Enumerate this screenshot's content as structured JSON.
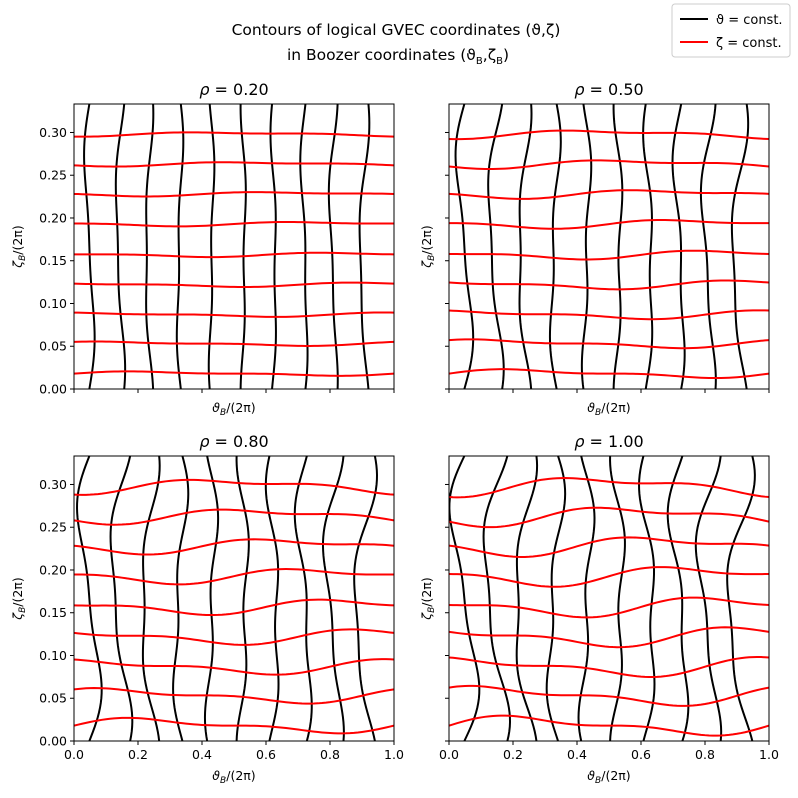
{
  "figure": {
    "title_line1": "Contours of logical GVEC coordinates (ϑ,ζ)",
    "title_line2": "in Boozer coordinates (ϑ",
    "title_line2_sub1": "B",
    "title_line2_mid": ",ζ",
    "title_line2_sub2": "B",
    "title_line2_end": ")"
  },
  "legend": {
    "position": "top-right",
    "entries": [
      {
        "symbol": "ϑ",
        "text": " = const.",
        "color": "#000000"
      },
      {
        "symbol": "ζ",
        "text": " = const.",
        "color": "#ff0000"
      }
    ]
  },
  "axes_labels": {
    "x_main": "ϑ",
    "x_sub": "B",
    "x_tail": "/(2π)",
    "y_main": "ζ",
    "y_sub": "B",
    "y_tail": "/(2π)"
  },
  "colors": {
    "theta_const": "#000000",
    "zeta_const": "#ff0000"
  },
  "chart_data": [
    {
      "type": "line",
      "panel": "top-left",
      "title": "ρ = 0.20",
      "rho_symbol": "ρ",
      "rho_value": "0.20",
      "xlim": [
        0,
        1.0
      ],
      "ylim": [
        0,
        0.3333
      ],
      "x_ticks": [
        0.0,
        0.2,
        0.4,
        0.6,
        0.8,
        1.0
      ],
      "x_tick_labels_shown": false,
      "y_ticks": [
        "0.00",
        "0.05",
        "0.10",
        "0.15",
        "0.20",
        "0.25",
        "0.30"
      ],
      "y_tick_labels_shown": true,
      "theta_const_x": [
        0.048,
        0.143,
        0.233,
        0.33,
        0.43,
        0.53,
        0.625,
        0.72,
        0.81,
        0.905
      ],
      "theta_const_amp": 0.012,
      "zeta_const_y": [
        0.018,
        0.053,
        0.087,
        0.122,
        0.157,
        0.193,
        0.228,
        0.263,
        0.298
      ],
      "zeta_const_amp": 0.002
    },
    {
      "type": "line",
      "panel": "top-right",
      "title": "ρ = 0.50",
      "rho_symbol": "ρ",
      "rho_value": "0.50",
      "xlim": [
        0,
        1.0
      ],
      "ylim": [
        0,
        0.3333
      ],
      "x_ticks": [
        0.0,
        0.2,
        0.4,
        0.6,
        0.8,
        1.0
      ],
      "x_tick_labels_shown": false,
      "y_ticks": [
        "0.00",
        "0.05",
        "0.10",
        "0.15",
        "0.20",
        "0.25",
        "0.30"
      ],
      "y_tick_labels_shown": false,
      "theta_const_x": [
        0.048,
        0.143,
        0.233,
        0.33,
        0.43,
        0.53,
        0.625,
        0.72,
        0.81,
        0.905
      ],
      "theta_const_amp": 0.02,
      "zeta_const_y": [
        0.018,
        0.053,
        0.087,
        0.122,
        0.157,
        0.193,
        0.228,
        0.263,
        0.298
      ],
      "zeta_const_amp": 0.004
    },
    {
      "type": "line",
      "panel": "bottom-left",
      "title": "ρ = 0.80",
      "rho_symbol": "ρ",
      "rho_value": "0.80",
      "xlim": [
        0,
        1.0
      ],
      "ylim": [
        0,
        0.3333
      ],
      "x_ticks": [
        "0.0",
        "0.2",
        "0.4",
        "0.6",
        "0.8",
        "1.0"
      ],
      "x_tick_labels_shown": true,
      "y_ticks": [
        "0.00",
        "0.05",
        "0.10",
        "0.15",
        "0.20",
        "0.25",
        "0.30"
      ],
      "y_tick_labels_shown": true,
      "theta_const_x": [
        0.048,
        0.143,
        0.233,
        0.33,
        0.43,
        0.53,
        0.625,
        0.72,
        0.81,
        0.905
      ],
      "theta_const_amp": 0.028,
      "zeta_const_y": [
        0.018,
        0.053,
        0.087,
        0.122,
        0.157,
        0.193,
        0.228,
        0.263,
        0.298
      ],
      "zeta_const_amp": 0.007
    },
    {
      "type": "line",
      "panel": "bottom-right",
      "title": "ρ = 1.00",
      "rho_symbol": "ρ",
      "rho_value": "1.00",
      "xlim": [
        0,
        1.0
      ],
      "ylim": [
        0,
        0.3333
      ],
      "x_ticks": [
        "0.0",
        "0.2",
        "0.4",
        "0.6",
        "0.8",
        "1.0"
      ],
      "x_tick_labels_shown": true,
      "y_ticks": [
        "0.00",
        "0.05",
        "0.10",
        "0.15",
        "0.20",
        "0.25",
        "0.30"
      ],
      "y_tick_labels_shown": false,
      "theta_const_x": [
        0.048,
        0.143,
        0.233,
        0.33,
        0.43,
        0.53,
        0.625,
        0.72,
        0.81,
        0.905
      ],
      "theta_const_amp": 0.034,
      "zeta_const_y": [
        0.018,
        0.053,
        0.087,
        0.122,
        0.157,
        0.193,
        0.228,
        0.263,
        0.298
      ],
      "zeta_const_amp": 0.009
    }
  ]
}
